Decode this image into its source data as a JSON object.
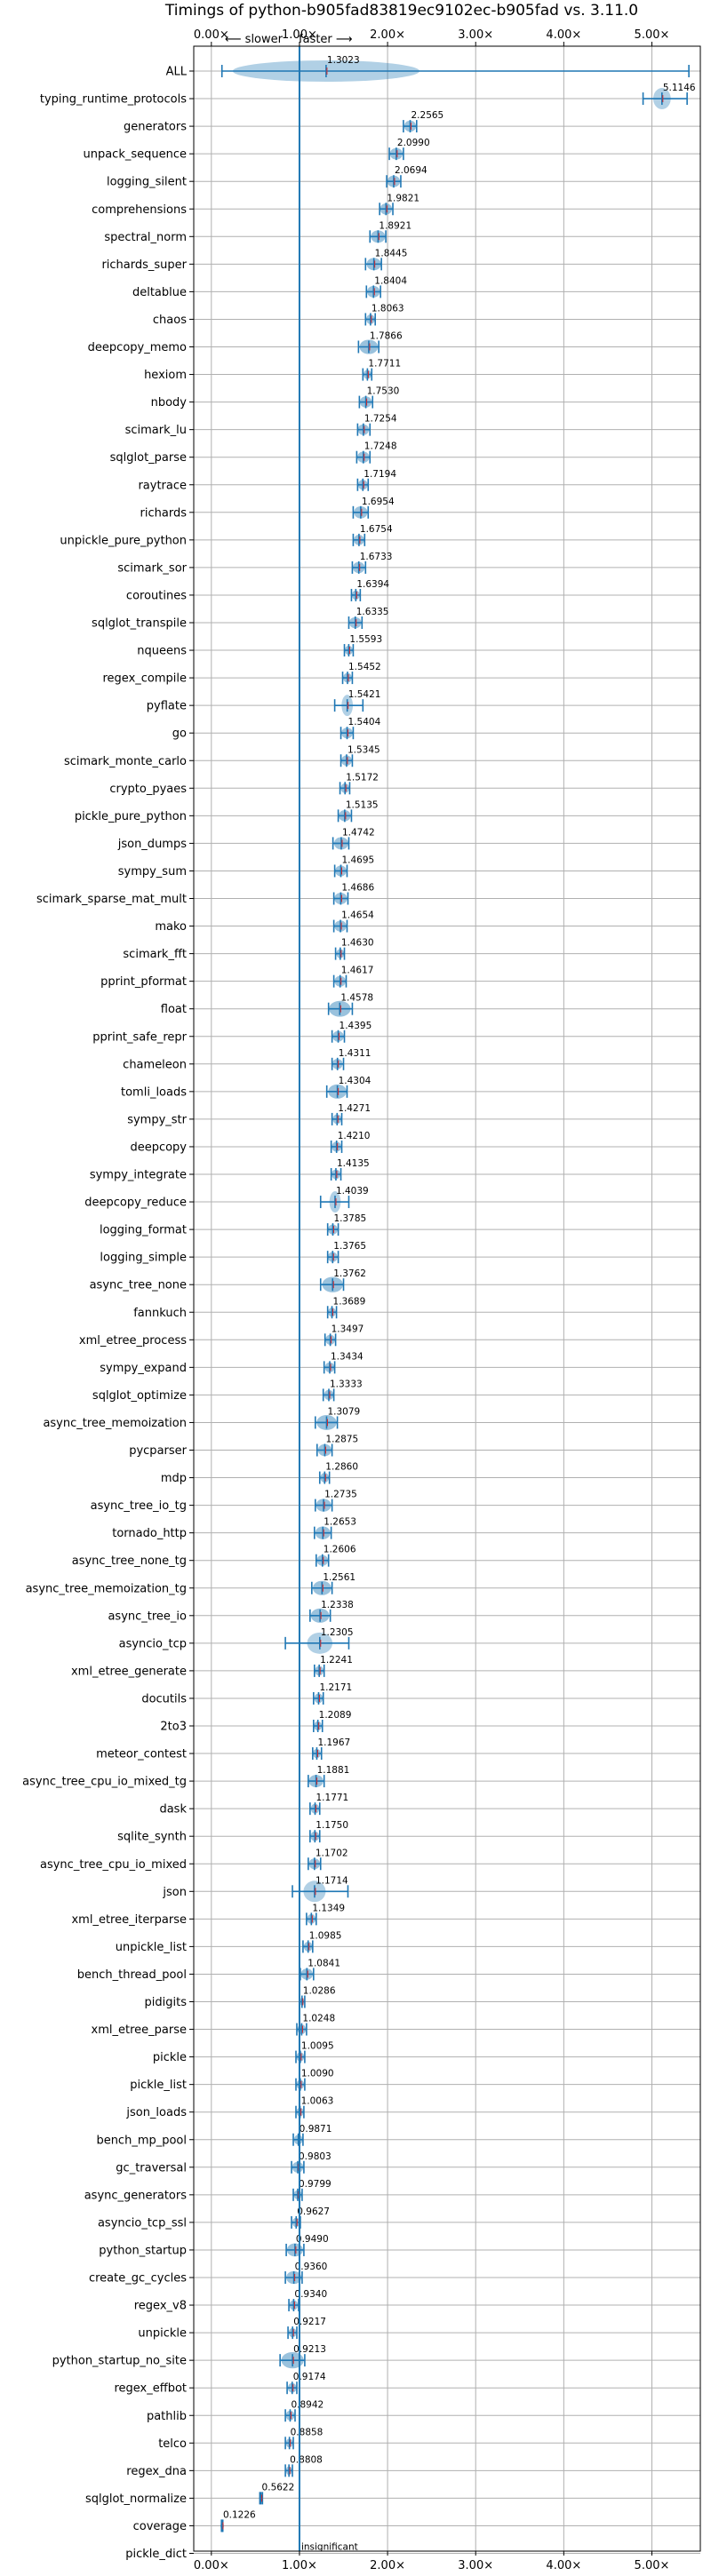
{
  "chart_data": {
    "type": "scatter",
    "title": "Timings of python-b905fad83819ec9102ec-b905fad vs. 3.11.0",
    "direction_labels": {
      "left": "⟵ slower",
      "right": "faster ⟶"
    },
    "x_ticks": [
      "0.00×",
      "1.00×",
      "2.00×",
      "3.00×",
      "4.00×",
      "5.00×"
    ],
    "x_tick_values": [
      0,
      1,
      2,
      3,
      4,
      5
    ],
    "xlim": [
      -0.2,
      5.55
    ],
    "reference_line": 1.0,
    "grid": true,
    "insignificant_label": "insignificant",
    "colors": {
      "marker": "#1f77b4",
      "violin": "#1f77b4",
      "median": "#d62728"
    },
    "benchmarks": [
      {
        "name": "ALL",
        "value": 1.3023,
        "label": "1.3023",
        "lo": 0.12,
        "hi": 5.42
      },
      {
        "name": "typing_runtime_protocols",
        "value": 5.1146,
        "label": "5.1146",
        "lo": 4.9,
        "hi": 5.4
      },
      {
        "name": "generators",
        "value": 2.2565,
        "label": "2.2565",
        "lo": 2.18,
        "hi": 2.33
      },
      {
        "name": "unpack_sequence",
        "value": 2.099,
        "label": "2.0990",
        "lo": 2.02,
        "hi": 2.18
      },
      {
        "name": "logging_silent",
        "value": 2.0694,
        "label": "2.0694",
        "lo": 1.99,
        "hi": 2.15
      },
      {
        "name": "comprehensions",
        "value": 1.9821,
        "label": "1.9821",
        "lo": 1.91,
        "hi": 2.06
      },
      {
        "name": "spectral_norm",
        "value": 1.8921,
        "label": "1.8921",
        "lo": 1.8,
        "hi": 1.98
      },
      {
        "name": "richards_super",
        "value": 1.8445,
        "label": "1.8445",
        "lo": 1.75,
        "hi": 1.93
      },
      {
        "name": "deltablue",
        "value": 1.8404,
        "label": "1.8404",
        "lo": 1.76,
        "hi": 1.92
      },
      {
        "name": "chaos",
        "value": 1.8063,
        "label": "1.8063",
        "lo": 1.75,
        "hi": 1.86
      },
      {
        "name": "deepcopy_memo",
        "value": 1.7866,
        "label": "1.7866",
        "lo": 1.67,
        "hi": 1.9
      },
      {
        "name": "hexiom",
        "value": 1.7711,
        "label": "1.7711",
        "lo": 1.72,
        "hi": 1.82
      },
      {
        "name": "nbody",
        "value": 1.753,
        "label": "1.7530",
        "lo": 1.68,
        "hi": 1.83
      },
      {
        "name": "scimark_lu",
        "value": 1.7254,
        "label": "1.7254",
        "lo": 1.66,
        "hi": 1.8
      },
      {
        "name": "sqlglot_parse",
        "value": 1.7248,
        "label": "1.7248",
        "lo": 1.65,
        "hi": 1.8
      },
      {
        "name": "raytrace",
        "value": 1.7194,
        "label": "1.7194",
        "lo": 1.66,
        "hi": 1.78
      },
      {
        "name": "richards",
        "value": 1.6954,
        "label": "1.6954",
        "lo": 1.61,
        "hi": 1.78
      },
      {
        "name": "unpickle_pure_python",
        "value": 1.6754,
        "label": "1.6754",
        "lo": 1.61,
        "hi": 1.74
      },
      {
        "name": "scimark_sor",
        "value": 1.6733,
        "label": "1.6733",
        "lo": 1.6,
        "hi": 1.75
      },
      {
        "name": "coroutines",
        "value": 1.6394,
        "label": "1.6394",
        "lo": 1.59,
        "hi": 1.69
      },
      {
        "name": "sqlglot_transpile",
        "value": 1.6335,
        "label": "1.6335",
        "lo": 1.56,
        "hi": 1.71
      },
      {
        "name": "nqueens",
        "value": 1.5593,
        "label": "1.5593",
        "lo": 1.51,
        "hi": 1.61
      },
      {
        "name": "regex_compile",
        "value": 1.5452,
        "label": "1.5452",
        "lo": 1.49,
        "hi": 1.6
      },
      {
        "name": "pyflate",
        "value": 1.5421,
        "label": "1.5421",
        "lo": 1.4,
        "hi": 1.72
      },
      {
        "name": "go",
        "value": 1.5404,
        "label": "1.5404",
        "lo": 1.47,
        "hi": 1.61
      },
      {
        "name": "scimark_monte_carlo",
        "value": 1.5345,
        "label": "1.5345",
        "lo": 1.47,
        "hi": 1.6
      },
      {
        "name": "crypto_pyaes",
        "value": 1.5172,
        "label": "1.5172",
        "lo": 1.46,
        "hi": 1.57
      },
      {
        "name": "pickle_pure_python",
        "value": 1.5135,
        "label": "1.5135",
        "lo": 1.44,
        "hi": 1.59
      },
      {
        "name": "json_dumps",
        "value": 1.4742,
        "label": "1.4742",
        "lo": 1.38,
        "hi": 1.56
      },
      {
        "name": "sympy_sum",
        "value": 1.4695,
        "label": "1.4695",
        "lo": 1.4,
        "hi": 1.54
      },
      {
        "name": "scimark_sparse_mat_mult",
        "value": 1.4686,
        "label": "1.4686",
        "lo": 1.39,
        "hi": 1.55
      },
      {
        "name": "mako",
        "value": 1.4654,
        "label": "1.4654",
        "lo": 1.39,
        "hi": 1.54
      },
      {
        "name": "scimark_fft",
        "value": 1.463,
        "label": "1.4630",
        "lo": 1.41,
        "hi": 1.51
      },
      {
        "name": "pprint_pformat",
        "value": 1.4617,
        "label": "1.4617",
        "lo": 1.39,
        "hi": 1.53
      },
      {
        "name": "float",
        "value": 1.4578,
        "label": "1.4578",
        "lo": 1.33,
        "hi": 1.6
      },
      {
        "name": "pprint_safe_repr",
        "value": 1.4395,
        "label": "1.4395",
        "lo": 1.37,
        "hi": 1.51
      },
      {
        "name": "chameleon",
        "value": 1.4311,
        "label": "1.4311",
        "lo": 1.37,
        "hi": 1.5
      },
      {
        "name": "tomli_loads",
        "value": 1.4304,
        "label": "1.4304",
        "lo": 1.31,
        "hi": 1.54
      },
      {
        "name": "sympy_str",
        "value": 1.4271,
        "label": "1.4271",
        "lo": 1.37,
        "hi": 1.48
      },
      {
        "name": "deepcopy",
        "value": 1.421,
        "label": "1.4210",
        "lo": 1.36,
        "hi": 1.48
      },
      {
        "name": "sympy_integrate",
        "value": 1.4135,
        "label": "1.4135",
        "lo": 1.36,
        "hi": 1.47
      },
      {
        "name": "deepcopy_reduce",
        "value": 1.4039,
        "label": "1.4039",
        "lo": 1.24,
        "hi": 1.56
      },
      {
        "name": "logging_format",
        "value": 1.3785,
        "label": "1.3785",
        "lo": 1.32,
        "hi": 1.44
      },
      {
        "name": "logging_simple",
        "value": 1.3765,
        "label": "1.3765",
        "lo": 1.32,
        "hi": 1.44
      },
      {
        "name": "async_tree_none",
        "value": 1.3762,
        "label": "1.3762",
        "lo": 1.24,
        "hi": 1.5
      },
      {
        "name": "fannkuch",
        "value": 1.3689,
        "label": "1.3689",
        "lo": 1.32,
        "hi": 1.42
      },
      {
        "name": "xml_etree_process",
        "value": 1.3497,
        "label": "1.3497",
        "lo": 1.29,
        "hi": 1.41
      },
      {
        "name": "sympy_expand",
        "value": 1.3434,
        "label": "1.3434",
        "lo": 1.28,
        "hi": 1.4
      },
      {
        "name": "sqlglot_optimize",
        "value": 1.3333,
        "label": "1.3333",
        "lo": 1.27,
        "hi": 1.39
      },
      {
        "name": "async_tree_memoization",
        "value": 1.3079,
        "label": "1.3079",
        "lo": 1.18,
        "hi": 1.43
      },
      {
        "name": "pycparser",
        "value": 1.2875,
        "label": "1.2875",
        "lo": 1.2,
        "hi": 1.37
      },
      {
        "name": "mdp",
        "value": 1.286,
        "label": "1.2860",
        "lo": 1.23,
        "hi": 1.34
      },
      {
        "name": "async_tree_io_tg",
        "value": 1.2735,
        "label": "1.2735",
        "lo": 1.18,
        "hi": 1.37
      },
      {
        "name": "tornado_http",
        "value": 1.2653,
        "label": "1.2653",
        "lo": 1.17,
        "hi": 1.36
      },
      {
        "name": "async_tree_none_tg",
        "value": 1.2606,
        "label": "1.2606",
        "lo": 1.19,
        "hi": 1.33
      },
      {
        "name": "async_tree_memoization_tg",
        "value": 1.2561,
        "label": "1.2561",
        "lo": 1.14,
        "hi": 1.37
      },
      {
        "name": "async_tree_io",
        "value": 1.2338,
        "label": "1.2338",
        "lo": 1.12,
        "hi": 1.35
      },
      {
        "name": "asyncio_tcp",
        "value": 1.2305,
        "label": "1.2305",
        "lo": 0.84,
        "hi": 1.56
      },
      {
        "name": "xml_etree_generate",
        "value": 1.2241,
        "label": "1.2241",
        "lo": 1.17,
        "hi": 1.28
      },
      {
        "name": "docutils",
        "value": 1.2171,
        "label": "1.2171",
        "lo": 1.16,
        "hi": 1.27
      },
      {
        "name": "2to3",
        "value": 1.2089,
        "label": "1.2089",
        "lo": 1.16,
        "hi": 1.26
      },
      {
        "name": "meteor_contest",
        "value": 1.1967,
        "label": "1.1967",
        "lo": 1.15,
        "hi": 1.25
      },
      {
        "name": "async_tree_cpu_io_mixed_tg",
        "value": 1.1881,
        "label": "1.1881",
        "lo": 1.1,
        "hi": 1.28
      },
      {
        "name": "dask",
        "value": 1.1771,
        "label": "1.1771",
        "lo": 1.12,
        "hi": 1.23
      },
      {
        "name": "sqlite_synth",
        "value": 1.175,
        "label": "1.1750",
        "lo": 1.12,
        "hi": 1.23
      },
      {
        "name": "async_tree_cpu_io_mixed",
        "value": 1.1702,
        "label": "1.1702",
        "lo": 1.1,
        "hi": 1.24
      },
      {
        "name": "json",
        "value": 1.1714,
        "label": "1.1714",
        "lo": 0.92,
        "hi": 1.55
      },
      {
        "name": "xml_etree_iterparse",
        "value": 1.1349,
        "label": "1.1349",
        "lo": 1.08,
        "hi": 1.19
      },
      {
        "name": "unpickle_list",
        "value": 1.0985,
        "label": "1.0985",
        "lo": 1.04,
        "hi": 1.15
      },
      {
        "name": "bench_thread_pool",
        "value": 1.0841,
        "label": "1.0841",
        "lo": 1.01,
        "hi": 1.16
      },
      {
        "name": "pidigits",
        "value": 1.0286,
        "label": "1.0286",
        "lo": 1.0,
        "hi": 1.06
      },
      {
        "name": "xml_etree_parse",
        "value": 1.0248,
        "label": "1.0248",
        "lo": 0.97,
        "hi": 1.08
      },
      {
        "name": "pickle",
        "value": 1.0095,
        "label": "1.0095",
        "lo": 0.96,
        "hi": 1.06
      },
      {
        "name": "pickle_list",
        "value": 1.009,
        "label": "1.0090",
        "lo": 0.96,
        "hi": 1.06
      },
      {
        "name": "json_loads",
        "value": 1.0063,
        "label": "1.0063",
        "lo": 0.96,
        "hi": 1.05
      },
      {
        "name": "bench_mp_pool",
        "value": 0.9871,
        "label": "0.9871",
        "lo": 0.93,
        "hi": 1.04
      },
      {
        "name": "gc_traversal",
        "value": 0.9803,
        "label": "0.9803",
        "lo": 0.91,
        "hi": 1.05
      },
      {
        "name": "async_generators",
        "value": 0.9799,
        "label": "0.9799",
        "lo": 0.93,
        "hi": 1.03
      },
      {
        "name": "asyncio_tcp_ssl",
        "value": 0.9627,
        "label": "0.9627",
        "lo": 0.91,
        "hi": 1.01
      },
      {
        "name": "python_startup",
        "value": 0.949,
        "label": "0.9490",
        "lo": 0.85,
        "hi": 1.05
      },
      {
        "name": "create_gc_cycles",
        "value": 0.936,
        "label": "0.9360",
        "lo": 0.84,
        "hi": 1.03
      },
      {
        "name": "regex_v8",
        "value": 0.934,
        "label": "0.9340",
        "lo": 0.88,
        "hi": 0.99
      },
      {
        "name": "unpickle",
        "value": 0.9217,
        "label": "0.9217",
        "lo": 0.87,
        "hi": 0.97
      },
      {
        "name": "python_startup_no_site",
        "value": 0.9213,
        "label": "0.9213",
        "lo": 0.78,
        "hi": 1.06
      },
      {
        "name": "regex_effbot",
        "value": 0.9174,
        "label": "0.9174",
        "lo": 0.86,
        "hi": 0.97
      },
      {
        "name": "pathlib",
        "value": 0.8942,
        "label": "0.8942",
        "lo": 0.84,
        "hi": 0.95
      },
      {
        "name": "telco",
        "value": 0.8858,
        "label": "0.8858",
        "lo": 0.84,
        "hi": 0.93
      },
      {
        "name": "regex_dna",
        "value": 0.8808,
        "label": "0.8808",
        "lo": 0.84,
        "hi": 0.92
      },
      {
        "name": "sqlglot_normalize",
        "value": 0.5622,
        "label": "0.5622",
        "lo": 0.55,
        "hi": 0.58
      },
      {
        "name": "coverage",
        "value": 0.1226,
        "label": "0.1226",
        "lo": 0.115,
        "hi": 0.13
      },
      {
        "name": "pickle_dict",
        "value": null,
        "label": "insignificant",
        "lo": null,
        "hi": null
      }
    ]
  }
}
